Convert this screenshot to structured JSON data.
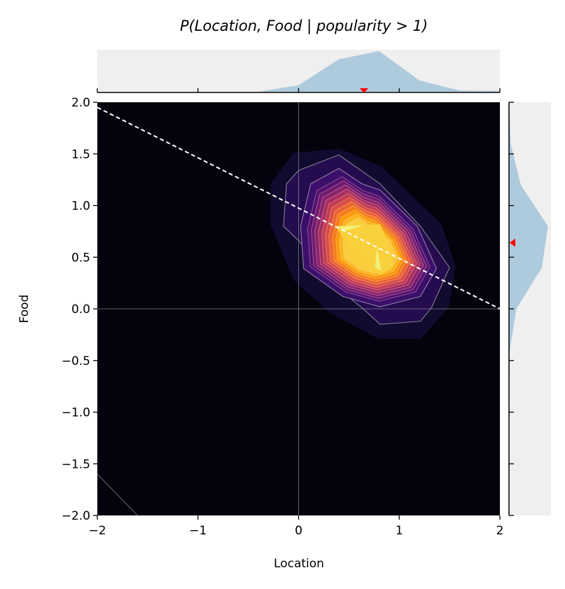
{
  "chart_data": {
    "type": "contour",
    "title": "P(Location, Food | popularity > 1)",
    "xlabel": "Location",
    "ylabel": "Food",
    "xlim": [
      -2,
      2
    ],
    "ylim": [
      -2,
      2
    ],
    "xticks": [
      "−2",
      "−1",
      "0",
      "1",
      "2"
    ],
    "xtick_values": [
      -2,
      -1,
      0,
      1,
      2
    ],
    "yticks": [
      "−2.0",
      "−1.5",
      "−1.0",
      "−0.5",
      "0.0",
      "0.5",
      "1.0",
      "1.5",
      "2.0"
    ],
    "ytick_values": [
      -2,
      -1.5,
      -1,
      -0.5,
      0,
      0.5,
      1,
      1.5,
      2
    ],
    "background_color": "#03020d",
    "colormap": "inferno",
    "level_colors": [
      "#120b30",
      "#250c4f",
      "#3b0f6b",
      "#56106e",
      "#711a6e",
      "#8c2369",
      "#a82e5f",
      "#c33c51",
      "#d94e41",
      "#eb6530",
      "#f57d15",
      "#fa9a07",
      "#fbb51a",
      "#f9cd3b"
    ],
    "core_color": "#f8d13c",
    "peak_color": "#f0f27a",
    "outer_fill": [
      [
        -0.28,
        1.21
      ],
      [
        -0.05,
        1.51
      ],
      [
        0.41,
        1.55
      ],
      [
        0.82,
        1.38
      ],
      [
        1.42,
        0.82
      ],
      [
        1.56,
        0.41
      ],
      [
        1.49,
        0.01
      ],
      [
        1.21,
        -0.29
      ],
      [
        0.79,
        -0.29
      ],
      [
        0.3,
        -0.03
      ],
      [
        -0.05,
        0.28
      ],
      [
        -0.28,
        0.82
      ]
    ],
    "contour_line_1": [
      [
        -0.12,
        1.21
      ],
      [
        0.0,
        1.34
      ],
      [
        0.4,
        1.49
      ],
      [
        0.81,
        1.21
      ],
      [
        1.21,
        0.8
      ],
      [
        1.5,
        0.4
      ],
      [
        1.32,
        0.01
      ],
      [
        1.21,
        -0.12
      ],
      [
        0.81,
        -0.15
      ],
      [
        0.63,
        0.01
      ],
      [
        0.4,
        0.19
      ],
      [
        0.0,
        0.66
      ],
      [
        -0.15,
        0.8
      ]
    ],
    "contour_line_2": [
      [
        0.12,
        1.21
      ],
      [
        0.4,
        1.36
      ],
      [
        0.63,
        1.21
      ],
      [
        0.81,
        1.15
      ],
      [
        1.18,
        0.8
      ],
      [
        1.37,
        0.39
      ],
      [
        1.21,
        0.12
      ],
      [
        0.81,
        0.02
      ],
      [
        0.44,
        0.12
      ],
      [
        0.05,
        0.39
      ],
      [
        0.02,
        0.8
      ]
    ],
    "core": [
      [
        0.37,
        0.8
      ],
      [
        0.81,
        0.82
      ],
      [
        0.88,
        0.66
      ],
      [
        0.94,
        0.4
      ],
      [
        0.81,
        0.33
      ],
      [
        0.65,
        0.48
      ],
      [
        0.44,
        0.69
      ]
    ],
    "corner_contour": [
      [
        -2,
        -1.6
      ],
      [
        -1.6,
        -2
      ]
    ],
    "reference_lines": {
      "x": 0,
      "y": 0,
      "color": "#8a8a8a"
    },
    "regression_line": {
      "x": [
        -2,
        2
      ],
      "y": [
        1.95,
        0.0
      ],
      "style": "dashed",
      "color": "#ffffff"
    },
    "marginal_x": {
      "x": [
        -2,
        -0.4,
        0,
        0.4,
        0.8,
        1.2,
        1.6,
        2
      ],
      "density_relative": [
        0,
        0,
        0.16,
        0.8,
        1.0,
        0.28,
        0.03,
        0.02
      ],
      "marker": 0.65,
      "fill_color": "#aecadd",
      "background": "#efefef"
    },
    "marginal_y": {
      "y": [
        2,
        1.6,
        1.2,
        0.8,
        0.4,
        0.0,
        -0.4,
        -2
      ],
      "density_relative": [
        0.01,
        0.04,
        0.29,
        0.96,
        0.81,
        0.18,
        0.02,
        0
      ],
      "marker": 0.64,
      "fill_color": "#aecadd",
      "background": "#efefef"
    },
    "marker_color": "#ff0000"
  }
}
